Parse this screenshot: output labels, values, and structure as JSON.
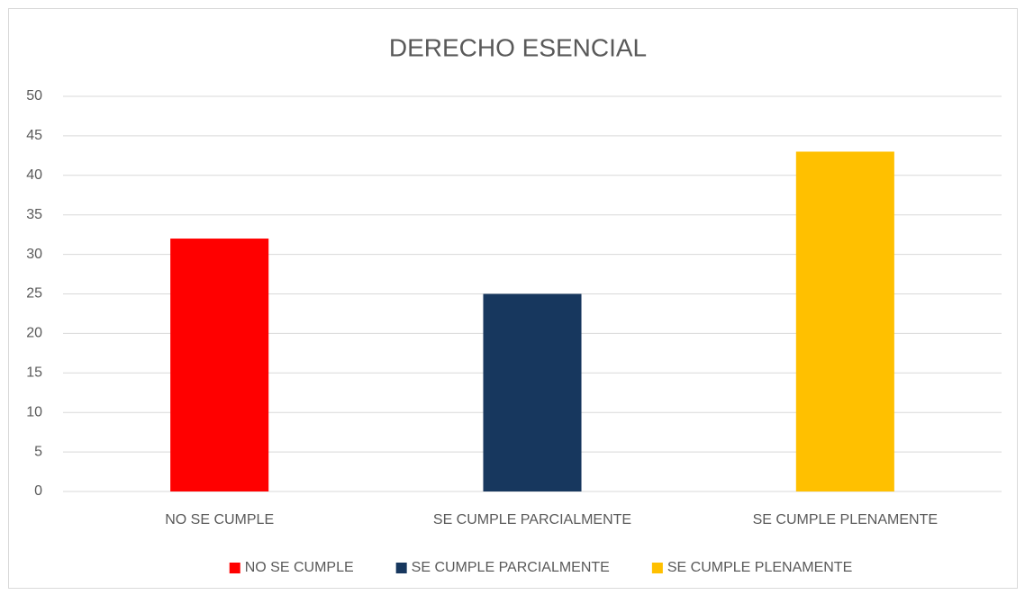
{
  "chart_data": {
    "type": "bar",
    "title": "DERECHO ESENCIAL",
    "categories": [
      "NO SE CUMPLE",
      "SE CUMPLE PARCIALMENTE",
      "SE CUMPLE PLENAMENTE"
    ],
    "values": [
      32,
      25,
      43
    ],
    "colors": [
      "#ff0000",
      "#17375e",
      "#ffc000"
    ],
    "ylim": [
      0,
      50
    ],
    "yticks": [
      0,
      5,
      10,
      15,
      20,
      25,
      30,
      35,
      40,
      45,
      50
    ],
    "grid": true,
    "legend": "bottom"
  }
}
